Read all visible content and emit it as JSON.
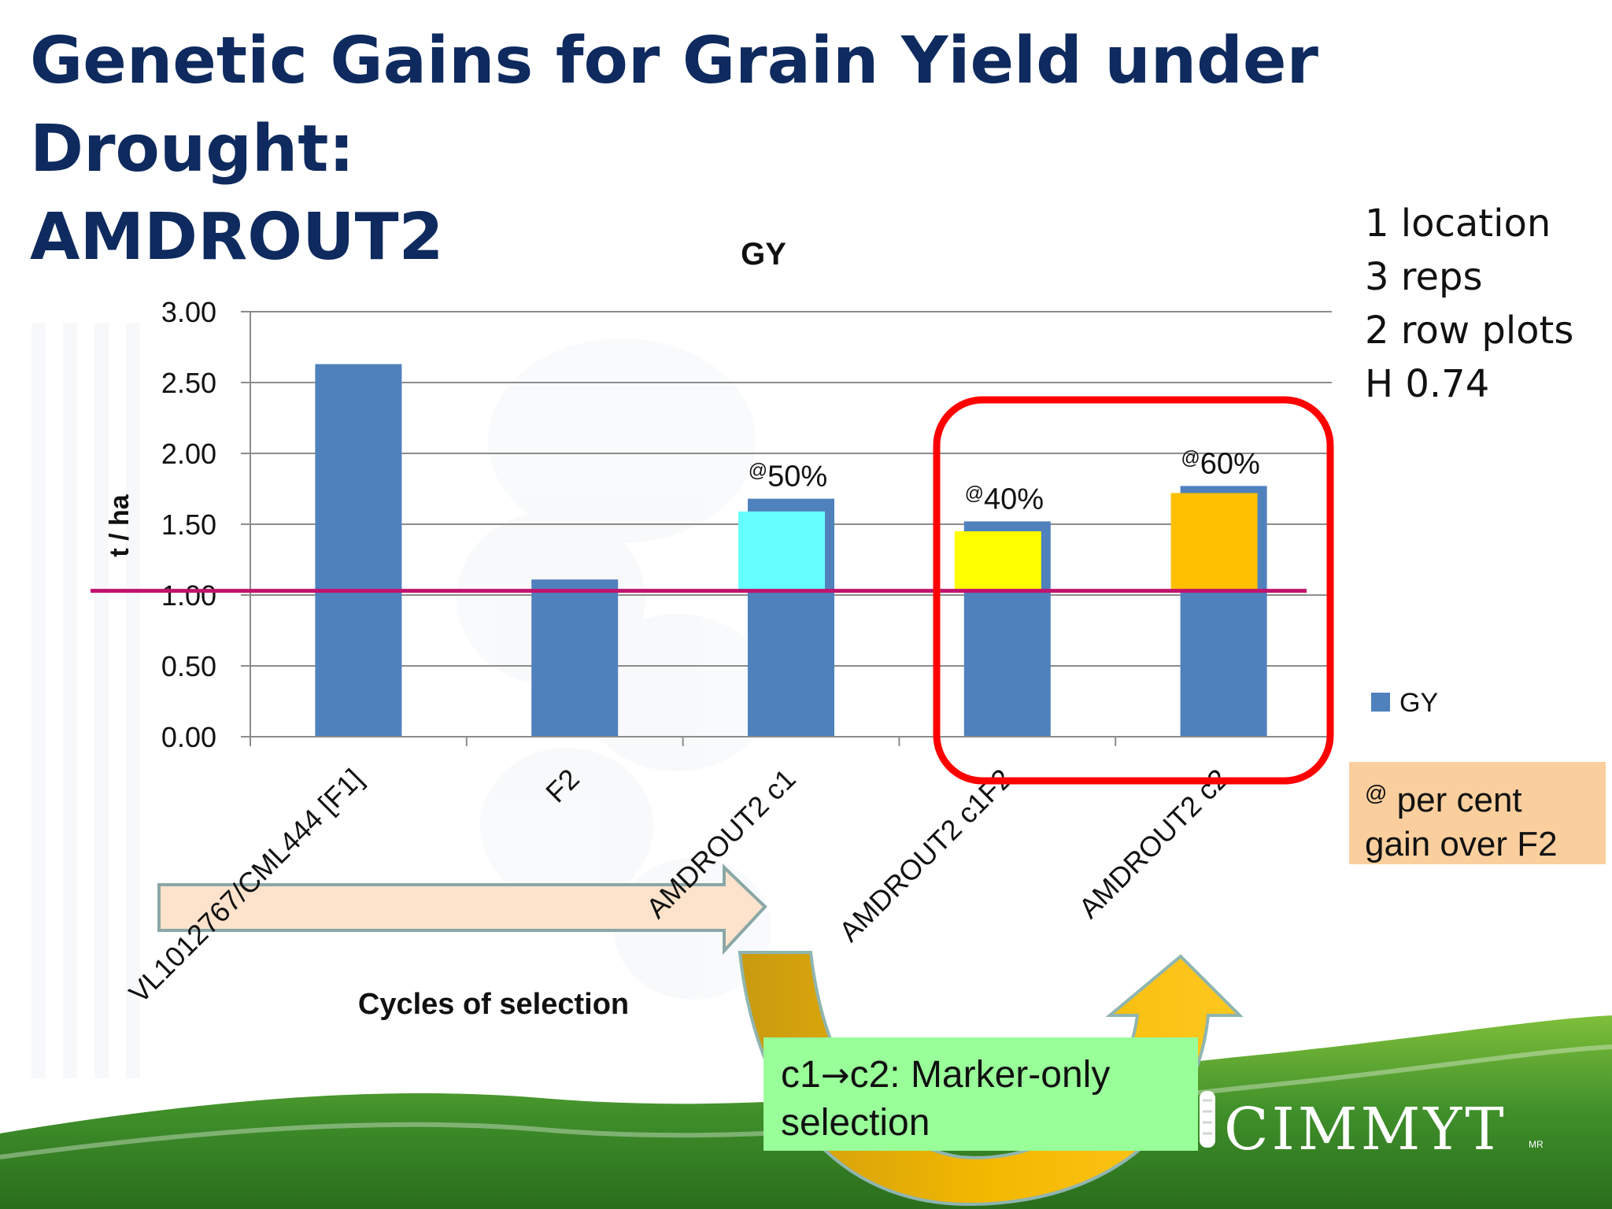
{
  "slide": {
    "title_line1": "Genetic Gains for Grain Yield under Drought:",
    "title_line2": "AMDROUT2",
    "info_lines": [
      "1 location",
      "3 reps",
      "2 row plots",
      "H 0.74"
    ],
    "note_text": "per cent",
    "note_line2": "gain over F2",
    "note_symbol": "@",
    "marker_from": "c1",
    "marker_arrow": "→",
    "marker_rest": "c2: Marker-only",
    "marker_line2": "selection",
    "logo_text": "CIMMYT",
    "logo_mark": "MR"
  },
  "colors": {
    "title": "#0e2a5e",
    "bar": "#4f81bd",
    "gain_c1": "#66ffff",
    "gain_c1F2": "#ffff00",
    "gain_c2": "#ffc000",
    "reference_line": "#c0136e",
    "highlight_box": "#ff0000",
    "arrow_right_fill": "#fde3cc",
    "curved_arrow": "#f0b400",
    "grass": "#3f8f2a"
  },
  "chart_data": {
    "type": "bar",
    "title": "GY",
    "xlabel": "Cycles of selection",
    "ylabel": "t / ha",
    "ylim": [
      0,
      3
    ],
    "yticks": [
      "0.00",
      "0.50",
      "1.00",
      "1.50",
      "2.00",
      "2.50",
      "3.00"
    ],
    "categories": [
      "VL1012767/CML444 [F1]",
      "F2",
      "AMDROUT2 c1",
      "AMDROUT2 c1F2",
      "AMDROUT2 c2"
    ],
    "series": [
      {
        "name": "GY",
        "values": [
          2.63,
          1.11,
          1.68,
          1.52,
          1.77
        ]
      }
    ],
    "gain_overlays": [
      {
        "category": "AMDROUT2 c1",
        "from": 1.02,
        "to": 1.59,
        "label": "50%"
      },
      {
        "category": "AMDROUT2 c1F2",
        "from": 1.02,
        "to": 1.45,
        "label": "40%"
      },
      {
        "category": "AMDROUT2 c2",
        "from": 1.02,
        "to": 1.72,
        "label": "60%"
      }
    ],
    "reference_line": 1.03,
    "legend": "right",
    "grid": true
  }
}
